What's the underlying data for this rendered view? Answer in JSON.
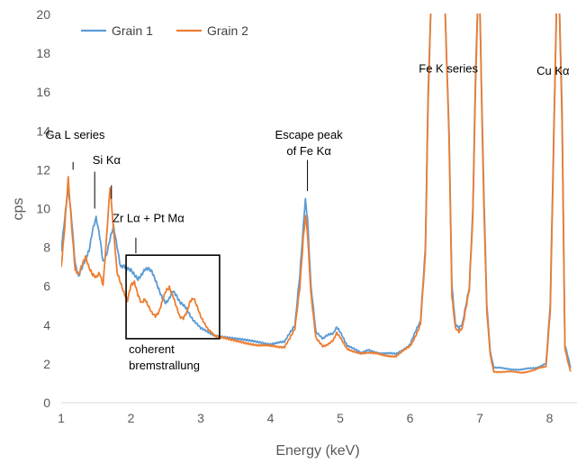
{
  "chart_data": {
    "type": "line",
    "xlabel": "Energy (keV)",
    "ylabel": "cps",
    "xlim": [
      1,
      8.3
    ],
    "ylim": [
      0,
      20
    ],
    "x_ticks": [
      1,
      2,
      3,
      4,
      5,
      6,
      7,
      8
    ],
    "y_ticks": [
      0,
      2,
      4,
      6,
      8,
      10,
      12,
      14,
      16,
      18,
      20
    ],
    "grid": false,
    "legend": "top-left",
    "series": [
      {
        "name": "Grain 1",
        "color": "#5b9bd5",
        "x": [
          1.0,
          1.05,
          1.1,
          1.15,
          1.2,
          1.25,
          1.3,
          1.35,
          1.4,
          1.45,
          1.5,
          1.55,
          1.6,
          1.65,
          1.7,
          1.75,
          1.8,
          1.85,
          1.9,
          1.95,
          2.0,
          2.05,
          2.1,
          2.15,
          2.2,
          2.25,
          2.3,
          2.35,
          2.4,
          2.45,
          2.5,
          2.55,
          2.6,
          2.65,
          2.7,
          2.75,
          2.8,
          2.85,
          2.9,
          3.0,
          3.2,
          3.5,
          3.8,
          4.0,
          4.2,
          4.35,
          4.42,
          4.47,
          4.5,
          4.53,
          4.58,
          4.65,
          4.75,
          4.9,
          4.95,
          5.0,
          5.1,
          5.3,
          5.4,
          5.6,
          5.8,
          6.0,
          6.15,
          6.22,
          6.26,
          6.3,
          6.4,
          6.5,
          6.56,
          6.6,
          6.65,
          6.7,
          6.75,
          6.85,
          6.9,
          6.94,
          6.97,
          7.0,
          7.05,
          7.1,
          7.15,
          7.2,
          7.4,
          7.6,
          7.8,
          7.95,
          8.01,
          8.05,
          8.1,
          8.14,
          8.18,
          8.22,
          8.3
        ],
        "values": [
          7.8,
          9.5,
          11.2,
          9.5,
          7.2,
          6.5,
          6.9,
          7.3,
          7.8,
          8.9,
          9.6,
          8.7,
          7.3,
          7.6,
          8.4,
          9.0,
          8.0,
          7.0,
          7.1,
          7.0,
          6.9,
          6.6,
          6.3,
          6.5,
          6.8,
          6.9,
          6.8,
          6.4,
          5.9,
          5.4,
          5.1,
          5.3,
          5.7,
          5.5,
          5.2,
          5.1,
          4.9,
          4.5,
          4.2,
          3.8,
          3.5,
          3.3,
          3.1,
          3.05,
          3.1,
          4.0,
          6.5,
          9.0,
          10.5,
          9.5,
          6.0,
          3.6,
          3.3,
          3.6,
          3.9,
          3.6,
          2.9,
          2.6,
          2.7,
          2.55,
          2.5,
          3.0,
          4.2,
          8.0,
          16.0,
          20.5,
          20.5,
          20.5,
          14.0,
          6.0,
          4.0,
          3.8,
          4.0,
          6.0,
          10.0,
          17.0,
          20.5,
          20.5,
          12.0,
          5.0,
          2.6,
          1.8,
          1.75,
          1.7,
          1.8,
          2.0,
          5.0,
          12.0,
          20.5,
          20.5,
          15.0,
          3.0,
          1.8
        ]
      },
      {
        "name": "Grain 2",
        "color": "#ed7d31",
        "x": [
          1.0,
          1.05,
          1.1,
          1.15,
          1.2,
          1.25,
          1.3,
          1.35,
          1.4,
          1.45,
          1.5,
          1.55,
          1.6,
          1.65,
          1.7,
          1.75,
          1.8,
          1.85,
          1.9,
          1.95,
          2.0,
          2.05,
          2.1,
          2.15,
          2.2,
          2.25,
          2.3,
          2.35,
          2.4,
          2.45,
          2.5,
          2.55,
          2.6,
          2.65,
          2.7,
          2.75,
          2.8,
          2.85,
          2.9,
          2.95,
          3.0,
          3.1,
          3.2,
          3.5,
          3.8,
          4.0,
          4.2,
          4.35,
          4.42,
          4.47,
          4.5,
          4.53,
          4.58,
          4.65,
          4.75,
          4.9,
          4.95,
          5.0,
          5.1,
          5.3,
          5.4,
          5.6,
          5.8,
          6.0,
          6.15,
          6.22,
          6.26,
          6.3,
          6.4,
          6.5,
          6.56,
          6.6,
          6.65,
          6.7,
          6.75,
          6.85,
          6.9,
          6.94,
          6.97,
          7.0,
          7.05,
          7.1,
          7.15,
          7.2,
          7.4,
          7.6,
          7.8,
          7.95,
          8.01,
          8.05,
          8.1,
          8.14,
          8.18,
          8.22,
          8.3
        ],
        "values": [
          7.0,
          9.0,
          11.5,
          9.0,
          6.8,
          6.6,
          7.2,
          7.6,
          7.0,
          6.6,
          6.4,
          6.6,
          6.0,
          8.5,
          11.2,
          9.0,
          6.8,
          6.2,
          5.6,
          5.2,
          6.0,
          6.2,
          5.6,
          5.2,
          5.4,
          5.0,
          4.6,
          4.4,
          4.6,
          5.2,
          5.8,
          6.0,
          5.6,
          5.0,
          4.4,
          4.3,
          4.6,
          5.2,
          5.4,
          5.0,
          4.5,
          3.8,
          3.4,
          3.2,
          3.0,
          2.9,
          2.9,
          3.8,
          6.0,
          8.5,
          9.6,
          8.8,
          5.6,
          3.4,
          2.9,
          3.2,
          3.6,
          3.4,
          2.8,
          2.5,
          2.6,
          2.45,
          2.4,
          2.9,
          4.0,
          7.5,
          15.5,
          20.5,
          20.5,
          20.5,
          13.5,
          5.5,
          3.9,
          3.7,
          3.9,
          5.8,
          9.5,
          16.5,
          20.5,
          20.5,
          11.5,
          4.8,
          2.5,
          1.6,
          1.6,
          1.55,
          1.7,
          1.9,
          4.8,
          11.5,
          20.5,
          20.5,
          14.5,
          2.8,
          1.6
        ]
      }
    ],
    "annotations": [
      {
        "lines": [
          "Ga L series"
        ],
        "x": 1.2,
        "y": 13.6
      },
      {
        "lines": [
          "Si Kα"
        ],
        "x": 1.65,
        "y": 12.3
      },
      {
        "lines": [
          "Zr Lα + Pt Mα"
        ],
        "x": 2.25,
        "y": 9.3
      },
      {
        "lines": [
          "Escape peak",
          "of Fe Kα"
        ],
        "x": 4.55,
        "y": 13.6
      },
      {
        "lines": [
          "Fe K series"
        ],
        "x": 6.55,
        "y": 17.0
      },
      {
        "lines": [
          "Cu Kα"
        ],
        "x": 8.05,
        "y": 16.9
      },
      {
        "lines": [
          "coherent",
          "bremstrallung"
        ],
        "x": 1.97,
        "y": 2.55
      }
    ],
    "marker_lines": [
      {
        "x": 1.17,
        "y0": 12.4,
        "y1": 12.0
      },
      {
        "x": 1.48,
        "y0": 11.9,
        "y1": 10.0
      },
      {
        "x": 1.72,
        "y0": 11.2,
        "y1": 10.5
      },
      {
        "x": 2.07,
        "y0": 8.5,
        "y1": 7.7
      },
      {
        "x": 4.53,
        "y0": 12.5,
        "y1": 10.9
      }
    ],
    "box": {
      "x0": 1.93,
      "x1": 3.27,
      "y0": 3.3,
      "y1": 7.6
    }
  }
}
